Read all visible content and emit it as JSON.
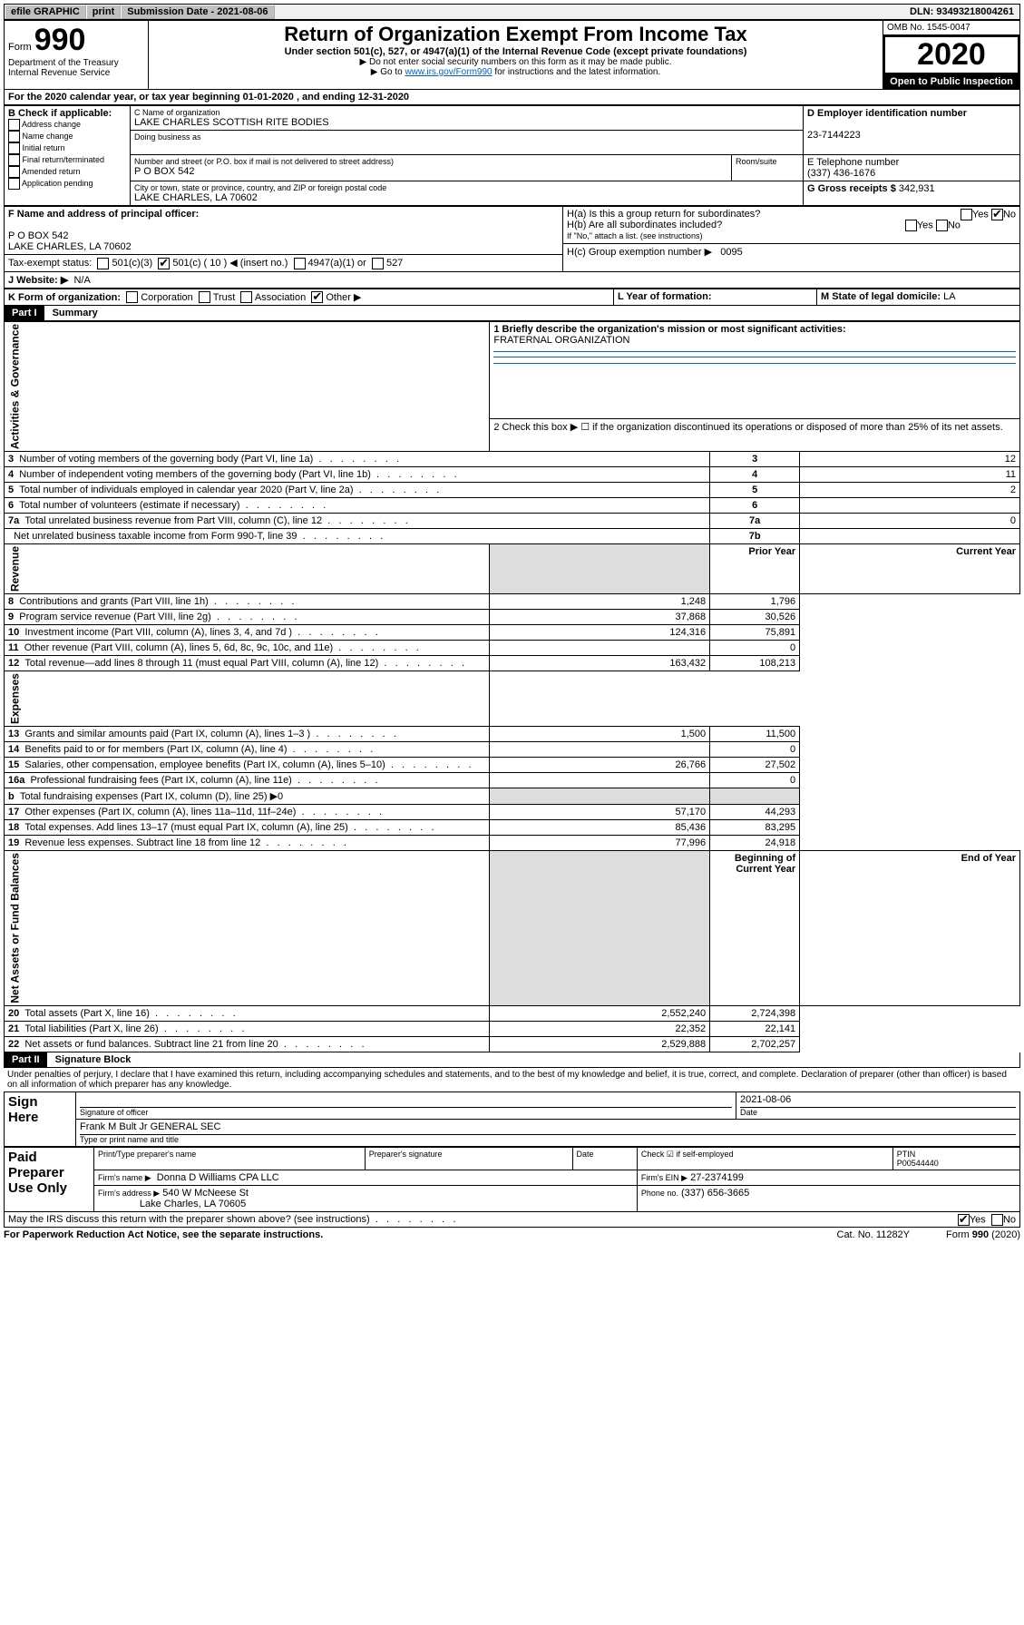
{
  "topbar": {
    "efile": "efile GRAPHIC",
    "print": "print",
    "sub_label": "Submission Date - 2021-08-06",
    "dln": "DLN: 93493218004261"
  },
  "header": {
    "form_word": "Form",
    "form_num": "990",
    "title": "Return of Organization Exempt From Income Tax",
    "subtitle": "Under section 501(c), 527, or 4947(a)(1) of the Internal Revenue Code (except private foundations)",
    "note1": "Do not enter social security numbers on this form as it may be made public.",
    "note2_pre": "Go to ",
    "note2_link": "www.irs.gov/Form990",
    "note2_post": " for instructions and the latest information.",
    "dept": "Department of the Treasury",
    "irs": "Internal Revenue Service",
    "omb_label": "OMB No. 1545-0047",
    "year": "2020",
    "open": "Open to Public Inspection"
  },
  "period": {
    "text_a": "For the 2020 calendar year, or tax year beginning ",
    "begin": "01-01-2020",
    "text_b": " , and ending ",
    "end": "12-31-2020"
  },
  "boxB": {
    "label": "B Check if applicable:",
    "items": [
      "Address change",
      "Name change",
      "Initial return",
      "Final return/terminated",
      "Amended return",
      "Application pending"
    ]
  },
  "boxC": {
    "name_label": "C Name of organization",
    "name": "LAKE CHARLES SCOTTISH RITE BODIES",
    "dba_label": "Doing business as",
    "addr_label": "Number and street (or P.O. box if mail is not delivered to street address)",
    "room_label": "Room/suite",
    "addr": "P O BOX 542",
    "city_label": "City or town, state or province, country, and ZIP or foreign postal code",
    "city": "LAKE CHARLES, LA  70602"
  },
  "boxD": {
    "label": "D Employer identification number",
    "value": "23-7144223"
  },
  "boxE": {
    "label": "E Telephone number",
    "value": "(337) 436-1676"
  },
  "boxG": {
    "label": "G Gross receipts $",
    "value": "342,931"
  },
  "boxF": {
    "label": "F  Name and address of principal officer:",
    "line1": "P O BOX 542",
    "line2": "LAKE CHARLES, LA  70602"
  },
  "boxH": {
    "a_label": "H(a)  Is this a group return for subordinates?",
    "b_label": "H(b)  Are all subordinates included?",
    "b_note": "If \"No,\" attach a list. (see instructions)",
    "c_label": "H(c)  Group exemption number ▶",
    "c_value": "0095",
    "yes": "Yes",
    "no": "No"
  },
  "boxI": {
    "label": "Tax-exempt status:",
    "opts": [
      "501(c)(3)",
      "501(c) ( 10 ) ◀ (insert no.)",
      "4947(a)(1) or",
      "527"
    ],
    "checked_index": 1
  },
  "boxJ": {
    "label": "J   Website: ▶",
    "value": "N/A"
  },
  "boxK": {
    "label": "K Form of organization:",
    "opts": [
      "Corporation",
      "Trust",
      "Association",
      "Other ▶"
    ],
    "checked_index": 3
  },
  "boxL": {
    "label": "L Year of formation:",
    "value": ""
  },
  "boxM": {
    "label": "M State of legal domicile: ",
    "value": "LA"
  },
  "part1": {
    "hdr": "Part I",
    "title": "Summary",
    "line1_label": "1  Briefly describe the organization's mission or most significant activities:",
    "line1_value": "FRATERNAL ORGANIZATION",
    "line2": "2   Check this box ▶ ☐  if the organization discontinued its operations or disposed of more than 25% of its net assets.",
    "rows_head": [
      {
        "n": "3",
        "t": "Number of voting members of the governing body (Part VI, line 1a)",
        "r": "3",
        "v": "12"
      },
      {
        "n": "4",
        "t": "Number of independent voting members of the governing body (Part VI, line 1b)",
        "r": "4",
        "v": "11"
      },
      {
        "n": "5",
        "t": "Total number of individuals employed in calendar year 2020 (Part V, line 2a)",
        "r": "5",
        "v": "2"
      },
      {
        "n": "6",
        "t": "Total number of volunteers (estimate if necessary)",
        "r": "6",
        "v": ""
      },
      {
        "n": "7a",
        "t": "Total unrelated business revenue from Part VIII, column (C), line 12",
        "r": "7a",
        "v": "0"
      },
      {
        "n": "",
        "t": "Net unrelated business taxable income from Form 990-T, line 39",
        "r": "7b",
        "v": ""
      }
    ],
    "col_prior": "Prior Year",
    "col_current": "Current Year",
    "revenue_rows": [
      {
        "n": "8",
        "t": "Contributions and grants (Part VIII, line 1h)",
        "p": "1,248",
        "c": "1,796"
      },
      {
        "n": "9",
        "t": "Program service revenue (Part VIII, line 2g)",
        "p": "37,868",
        "c": "30,526"
      },
      {
        "n": "10",
        "t": "Investment income (Part VIII, column (A), lines 3, 4, and 7d )",
        "p": "124,316",
        "c": "75,891"
      },
      {
        "n": "11",
        "t": "Other revenue (Part VIII, column (A), lines 5, 6d, 8c, 9c, 10c, and 11e)",
        "p": "",
        "c": "0"
      },
      {
        "n": "12",
        "t": "Total revenue—add lines 8 through 11 (must equal Part VIII, column (A), line 12)",
        "p": "163,432",
        "c": "108,213"
      }
    ],
    "expense_rows": [
      {
        "n": "13",
        "t": "Grants and similar amounts paid (Part IX, column (A), lines 1–3 )",
        "p": "1,500",
        "c": "11,500"
      },
      {
        "n": "14",
        "t": "Benefits paid to or for members (Part IX, column (A), line 4)",
        "p": "",
        "c": "0"
      },
      {
        "n": "15",
        "t": "Salaries, other compensation, employee benefits (Part IX, column (A), lines 5–10)",
        "p": "26,766",
        "c": "27,502"
      },
      {
        "n": "16a",
        "t": "Professional fundraising fees (Part IX, column (A), line 11e)",
        "p": "",
        "c": "0"
      },
      {
        "n": "b",
        "t": "Total fundraising expenses (Part IX, column (D), line 25) ▶0",
        "p": "__shade__",
        "c": "__shade__"
      },
      {
        "n": "17",
        "t": "Other expenses (Part IX, column (A), lines 11a–11d, 11f–24e)",
        "p": "57,170",
        "c": "44,293"
      },
      {
        "n": "18",
        "t": "Total expenses. Add lines 13–17 (must equal Part IX, column (A), line 25)",
        "p": "85,436",
        "c": "83,295"
      },
      {
        "n": "19",
        "t": "Revenue less expenses. Subtract line 18 from line 12",
        "p": "77,996",
        "c": "24,918"
      }
    ],
    "col_begin": "Beginning of Current Year",
    "col_end": "End of Year",
    "net_rows": [
      {
        "n": "20",
        "t": "Total assets (Part X, line 16)",
        "p": "2,552,240",
        "c": "2,724,398"
      },
      {
        "n": "21",
        "t": "Total liabilities (Part X, line 26)",
        "p": "22,352",
        "c": "22,141"
      },
      {
        "n": "22",
        "t": "Net assets or fund balances. Subtract line 21 from line 20",
        "p": "2,529,888",
        "c": "2,702,257"
      }
    ],
    "vert_labels": [
      "Activities & Governance",
      "Revenue",
      "Expenses",
      "Net Assets or Fund Balances"
    ]
  },
  "part2": {
    "hdr": "Part II",
    "title": "Signature Block",
    "perjury": "Under penalties of perjury, I declare that I have examined this return, including accompanying schedules and statements, and to the best of my knowledge and belief, it is true, correct, and complete. Declaration of preparer (other than officer) is based on all information of which preparer has any knowledge.",
    "sign_here": "Sign Here",
    "sig_officer": "Signature of officer",
    "sig_date": "2021-08-06",
    "date_label": "Date",
    "name_title": "Frank M Bult Jr GENERAL SEC",
    "name_title_label": "Type or print name and title",
    "paid": "Paid Preparer Use Only",
    "prep_name_label": "Print/Type preparer's name",
    "prep_sig_label": "Preparer's signature",
    "prep_date_label": "Date",
    "self_emp": "Check ☑ if self-employed",
    "ptin_label": "PTIN",
    "ptin": "P00544440",
    "firm_name_label": "Firm's name   ▶",
    "firm_name": "Donna D Williams CPA LLC",
    "firm_ein_label": "Firm's EIN ▶",
    "firm_ein": "27-2374199",
    "firm_addr_label": "Firm's address ▶",
    "firm_addr1": "540 W McNeese St",
    "firm_addr2": "Lake Charles, LA  70605",
    "firm_phone_label": "Phone no.",
    "firm_phone": "(337) 656-3665",
    "discuss": "May the IRS discuss this return with the preparer shown above? (see instructions)",
    "yes": "Yes",
    "no": "No"
  },
  "footer": {
    "pra": "For Paperwork Reduction Act Notice, see the separate instructions.",
    "cat": "Cat. No. 11282Y",
    "form": "Form 990 (2020)"
  }
}
